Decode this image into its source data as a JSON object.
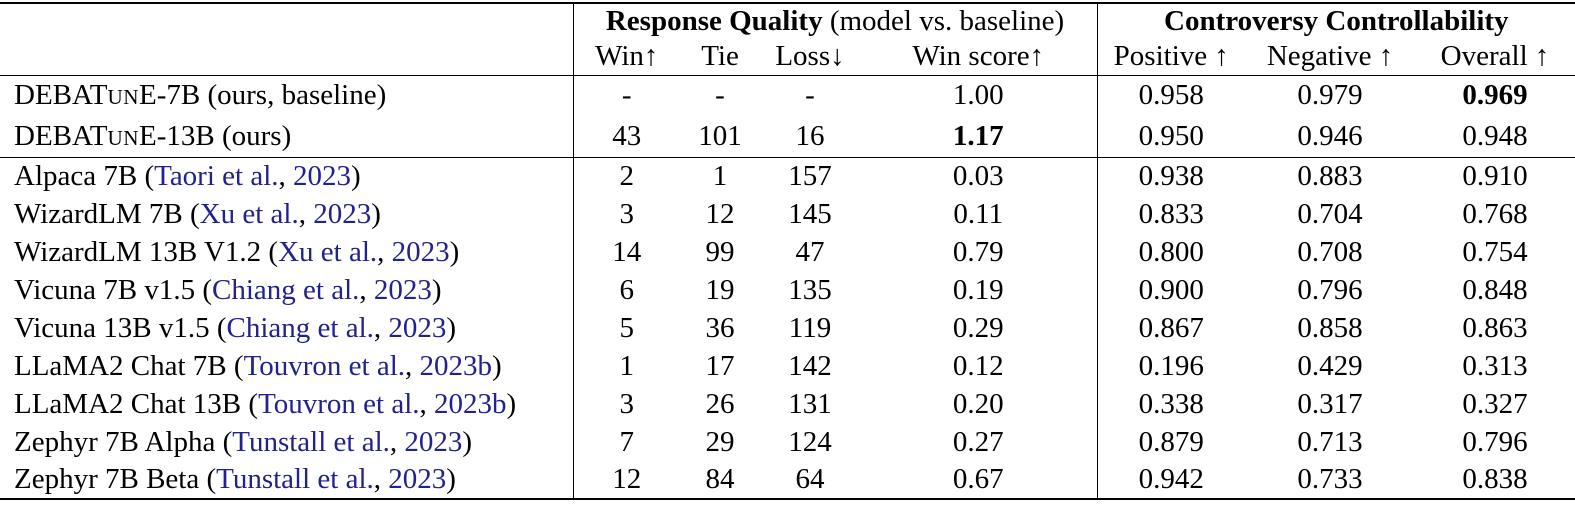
{
  "colors": {
    "cite": "#21218F",
    "text": "#000000",
    "background": "#FFFFFF"
  },
  "header": {
    "response_quality_bold": "Response Quality",
    "response_quality_note": " (model vs. baseline)",
    "controversy_bold": "Controversy Controllability",
    "subcolumns": [
      "Win↑",
      "Tie",
      "Loss↓",
      "Win score↑",
      "Positive ↑",
      "Negative ↑",
      "Overall ↑"
    ]
  },
  "rows": [
    {
      "name": [
        {
          "t": "DEBAT"
        },
        {
          "t": "UN",
          "s": "sc"
        },
        {
          "t": "E-7B (ours, baseline)"
        }
      ],
      "values": [
        "-",
        "-",
        "-",
        "1.00",
        "0.958",
        "0.979",
        "0.969"
      ],
      "bold_cols": [
        6
      ],
      "section": "ours"
    },
    {
      "name": [
        {
          "t": "DEBAT"
        },
        {
          "t": "UN",
          "s": "sc"
        },
        {
          "t": "E-13B (ours)"
        }
      ],
      "values": [
        "43",
        "101",
        "16",
        "1.17",
        "0.950",
        "0.946",
        "0.948"
      ],
      "bold_cols": [
        3
      ],
      "section": "ours"
    },
    {
      "name": [
        {
          "t": "Alpaca 7B ("
        },
        {
          "t": "Taori et al.",
          "s": "cite"
        },
        {
          "t": ", "
        },
        {
          "t": "2023",
          "s": "cite"
        },
        {
          "t": ")"
        }
      ],
      "values": [
        "2",
        "1",
        "157",
        "0.03",
        "0.938",
        "0.883",
        "0.910"
      ],
      "bold_cols": [],
      "section": "baselines"
    },
    {
      "name": [
        {
          "t": "WizardLM 7B ("
        },
        {
          "t": "Xu et al.",
          "s": "cite"
        },
        {
          "t": ", "
        },
        {
          "t": "2023",
          "s": "cite"
        },
        {
          "t": ")"
        }
      ],
      "values": [
        "3",
        "12",
        "145",
        "0.11",
        "0.833",
        "0.704",
        "0.768"
      ],
      "bold_cols": [],
      "section": "baselines"
    },
    {
      "name": [
        {
          "t": "WizardLM 13B V1.2 ("
        },
        {
          "t": "Xu et al.",
          "s": "cite"
        },
        {
          "t": ", "
        },
        {
          "t": "2023",
          "s": "cite"
        },
        {
          "t": ")"
        }
      ],
      "values": [
        "14",
        "99",
        "47",
        "0.79",
        "0.800",
        "0.708",
        "0.754"
      ],
      "bold_cols": [],
      "section": "baselines"
    },
    {
      "name": [
        {
          "t": "Vicuna 7B v1.5 ("
        },
        {
          "t": "Chiang et al.",
          "s": "cite"
        },
        {
          "t": ", "
        },
        {
          "t": "2023",
          "s": "cite"
        },
        {
          "t": ")"
        }
      ],
      "values": [
        "6",
        "19",
        "135",
        "0.19",
        "0.900",
        "0.796",
        "0.848"
      ],
      "bold_cols": [],
      "section": "baselines"
    },
    {
      "name": [
        {
          "t": "Vicuna 13B v1.5 ("
        },
        {
          "t": "Chiang et al.",
          "s": "cite"
        },
        {
          "t": ", "
        },
        {
          "t": "2023",
          "s": "cite"
        },
        {
          "t": ")"
        }
      ],
      "values": [
        "5",
        "36",
        "119",
        "0.29",
        "0.867",
        "0.858",
        "0.863"
      ],
      "bold_cols": [],
      "section": "baselines"
    },
    {
      "name": [
        {
          "t": "LLaMA2 Chat 7B ("
        },
        {
          "t": "Touvron et al.",
          "s": "cite"
        },
        {
          "t": ", "
        },
        {
          "t": "2023b",
          "s": "cite"
        },
        {
          "t": ")"
        }
      ],
      "values": [
        "1",
        "17",
        "142",
        "0.12",
        "0.196",
        "0.429",
        "0.313"
      ],
      "bold_cols": [],
      "section": "baselines"
    },
    {
      "name": [
        {
          "t": "LLaMA2 Chat 13B ("
        },
        {
          "t": "Touvron et al.",
          "s": "cite"
        },
        {
          "t": ", "
        },
        {
          "t": "2023b",
          "s": "cite"
        },
        {
          "t": ")"
        }
      ],
      "values": [
        "3",
        "26",
        "131",
        "0.20",
        "0.338",
        "0.317",
        "0.327"
      ],
      "bold_cols": [],
      "section": "baselines"
    },
    {
      "name": [
        {
          "t": "Zephyr 7B Alpha ("
        },
        {
          "t": "Tunstall et al.",
          "s": "cite"
        },
        {
          "t": ", "
        },
        {
          "t": "2023",
          "s": "cite"
        },
        {
          "t": ")"
        }
      ],
      "values": [
        "7",
        "29",
        "124",
        "0.27",
        "0.879",
        "0.713",
        "0.796"
      ],
      "bold_cols": [],
      "section": "baselines"
    },
    {
      "name": [
        {
          "t": "Zephyr 7B Beta ("
        },
        {
          "t": "Tunstall et al.",
          "s": "cite"
        },
        {
          "t": ", "
        },
        {
          "t": "2023",
          "s": "cite"
        },
        {
          "t": ")"
        }
      ],
      "values": [
        "12",
        "84",
        "64",
        "0.67",
        "0.942",
        "0.733",
        "0.838"
      ],
      "bold_cols": [],
      "section": "baselines"
    }
  ]
}
